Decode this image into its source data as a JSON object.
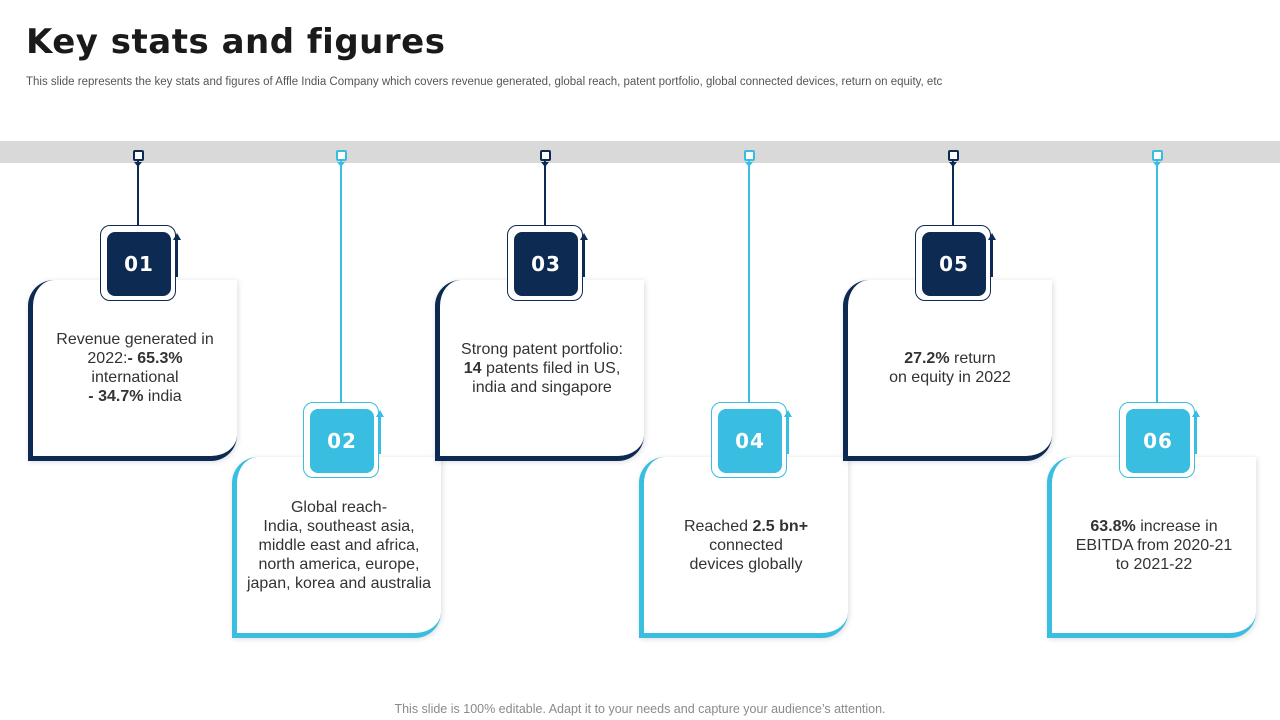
{
  "title": "Key stats and figures",
  "subtitle": "This slide represents the key stats and figures of Affle India Company which covers revenue generated, global reach, patent portfolio, global connected devices, return on equity, etc",
  "footer": "This slide is 100% editable. Adapt it to your needs and capture your audience’s attention.",
  "colors": {
    "dark": "#0d2a52",
    "light": "#39bde0",
    "band": "#d9d9d9"
  },
  "stats": [
    {
      "number": "01",
      "lines": [
        [
          [
            "Revenue generated in",
            false
          ]
        ],
        [
          [
            "2022:",
            false
          ],
          [
            "- 65.3%",
            true
          ]
        ],
        [
          [
            "international",
            false
          ]
        ],
        [
          [
            "- 34.7%",
            true
          ],
          [
            " india",
            false
          ]
        ]
      ]
    },
    {
      "number": "02",
      "lines": [
        [
          [
            "Global reach-",
            false
          ]
        ],
        [
          [
            "India, southeast asia,",
            false
          ]
        ],
        [
          [
            "middle east and africa,",
            false
          ]
        ],
        [
          [
            "north america, europe,",
            false
          ]
        ],
        [
          [
            "japan, korea and australia",
            false
          ]
        ]
      ]
    },
    {
      "number": "03",
      "lines": [
        [
          [
            "Strong patent portfolio:",
            false
          ]
        ],
        [
          [
            "14",
            true
          ],
          [
            " patents filed in US,",
            false
          ]
        ],
        [
          [
            "india and singapore",
            false
          ]
        ]
      ]
    },
    {
      "number": "04",
      "lines": [
        [
          [
            "Reached ",
            false
          ],
          [
            "2.5 bn+",
            true
          ]
        ],
        [
          [
            "connected",
            false
          ]
        ],
        [
          [
            "devices globally",
            false
          ]
        ]
      ]
    },
    {
      "number": "05",
      "lines": [
        [
          [
            "27.2%",
            true
          ],
          [
            " return",
            false
          ]
        ],
        [
          [
            "on equity in 2022",
            false
          ]
        ]
      ]
    },
    {
      "number": "06",
      "lines": [
        [
          [
            "63.8%",
            true
          ],
          [
            " increase in",
            false
          ]
        ],
        [
          [
            "EBITDA from 2020-21",
            false
          ]
        ],
        [
          [
            "to 2021-22",
            false
          ]
        ]
      ]
    }
  ]
}
